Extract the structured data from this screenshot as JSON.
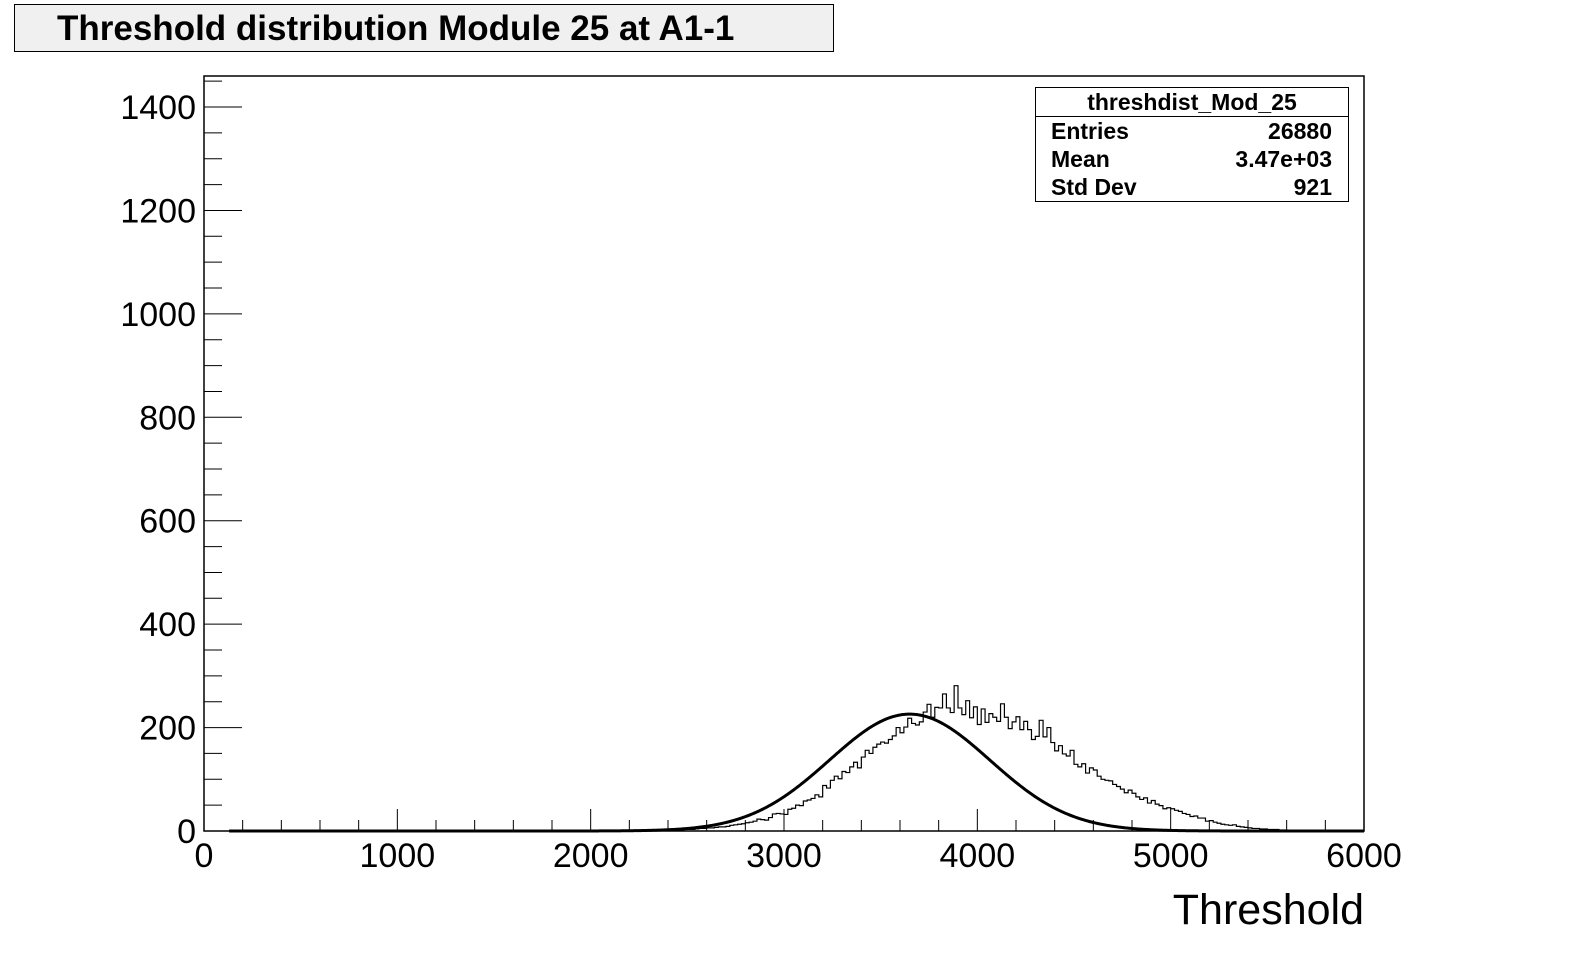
{
  "title": "Threshold distribution Module 25 at A1-1",
  "stats": {
    "name": "threshdist_Mod_25",
    "rows": [
      {
        "label": "Entries",
        "value": "26880"
      },
      {
        "label": "Mean",
        "value": "3.47e+03"
      },
      {
        "label": "Std Dev",
        "value": "921"
      }
    ]
  },
  "chart_data": {
    "type": "bar",
    "title": "Threshold distribution Module 25 at A1-1",
    "xlabel": "Threshold",
    "ylabel": "",
    "xlim": [
      0,
      6000
    ],
    "ylim": [
      0,
      1460
    ],
    "x_ticks": [
      0,
      1000,
      2000,
      3000,
      4000,
      5000,
      6000
    ],
    "y_ticks": [
      0,
      200,
      400,
      600,
      800,
      1000,
      1200,
      1400
    ],
    "grid": false,
    "legend": "none",
    "histogram": {
      "bin_width": 20,
      "bin_start": 2400,
      "counts": [
        1,
        1,
        2,
        2,
        3,
        3,
        3,
        4,
        5,
        5,
        6,
        6,
        7,
        8,
        8,
        9,
        11,
        12,
        13,
        14,
        16,
        17,
        19,
        23,
        22,
        21,
        26,
        33,
        34,
        33,
        32,
        42,
        44,
        50,
        49,
        58,
        60,
        63,
        70,
        66,
        88,
        83,
        98,
        106,
        101,
        115,
        113,
        124,
        133,
        122,
        143,
        156,
        150,
        162,
        168,
        172,
        170,
        177,
        184,
        200,
        190,
        201,
        218,
        208,
        205,
        211,
        230,
        245,
        220,
        239,
        238,
        265,
        238,
        229,
        281,
        238,
        225,
        252,
        219,
        240,
        206,
        236,
        210,
        227,
        220,
        212,
        246,
        220,
        198,
        211,
        221,
        196,
        212,
        196,
        177,
        183,
        214,
        182,
        200,
        171,
        155,
        165,
        149,
        145,
        156,
        129,
        124,
        130,
        112,
        122,
        118,
        106,
        100,
        98,
        97,
        90,
        86,
        81,
        74,
        79,
        73,
        66,
        61,
        64,
        54,
        59,
        52,
        49,
        43,
        45,
        43,
        40,
        38,
        34,
        32,
        28,
        29,
        25,
        25,
        19,
        20,
        17,
        15,
        13,
        12,
        11,
        12,
        9,
        8,
        7,
        6,
        5,
        5,
        4,
        4,
        3,
        3,
        3,
        2,
        2,
        1,
        1,
        1,
        1
      ]
    },
    "fit": {
      "type": "gaussian",
      "constant": 226,
      "mean": 3650,
      "sigma": 415,
      "range": [
        130,
        6000
      ]
    }
  }
}
